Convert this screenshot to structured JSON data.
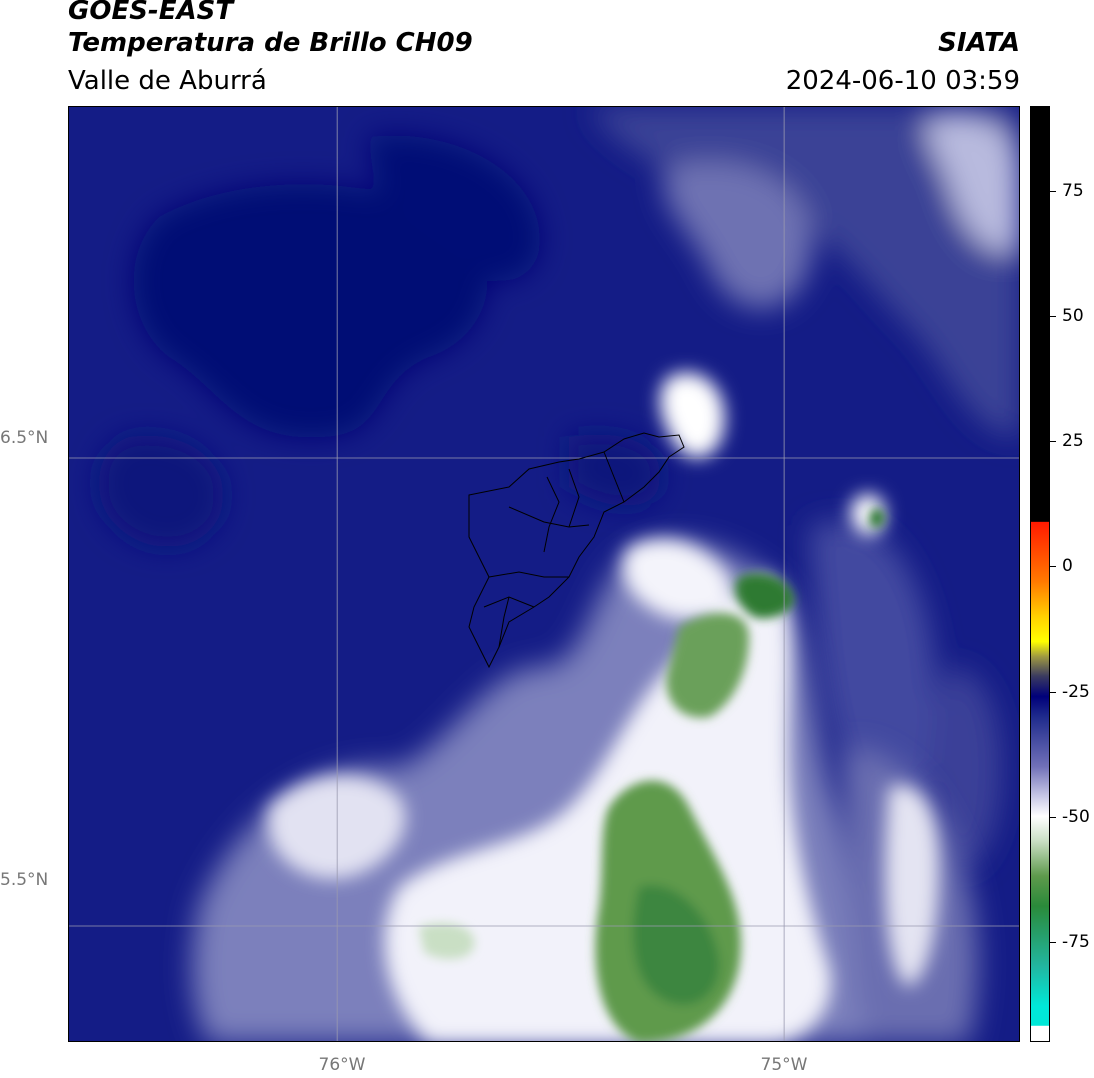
{
  "header": {
    "title": "GOES-EAST",
    "subtitle": "Temperatura de Brillo CH09",
    "region": "Valle de Aburrá",
    "brand": "SIATA",
    "timestamp": "2024-06-10 03:59"
  },
  "map": {
    "lat_labels": [
      "6.5°N",
      "5.5°N"
    ],
    "lon_labels": [
      "76°W",
      "75°W"
    ],
    "lat_values": [
      6.5,
      5.5
    ],
    "lon_values": [
      -76.0,
      -75.0
    ],
    "lat_range": [
      5.25,
      7.25
    ],
    "lon_range": [
      -76.6,
      -74.47
    ],
    "grid": true,
    "background_color": "#141c86",
    "features": [
      {
        "name": "deep-cold-blob-nw",
        "lon": -75.95,
        "lat": 6.95,
        "tb": -25
      },
      {
        "name": "cool-top-ne",
        "lon": -74.55,
        "lat": 7.05,
        "tb": -48
      },
      {
        "name": "cool-top-n",
        "lon": -75.15,
        "lat": 6.95,
        "tb": -40
      },
      {
        "name": "white-cell-north",
        "lon": -75.2,
        "lat": 6.53,
        "tb": -50
      },
      {
        "name": "green-cell-east",
        "lon": -74.8,
        "lat": 6.33,
        "tb": -65
      },
      {
        "name": "green-core-center",
        "lon": -75.08,
        "lat": 6.2,
        "tb": -70
      },
      {
        "name": "green-core-upper",
        "lon": -75.18,
        "lat": 6.05,
        "tb": -66
      },
      {
        "name": "green-core-south",
        "lon": -75.22,
        "lat": 5.45,
        "tb": -75
      },
      {
        "name": "white-band-south",
        "lon": -75.7,
        "lat": 5.5,
        "tb": -52
      },
      {
        "name": "white-band-east",
        "lon": -74.63,
        "lat": 5.55,
        "tb": -45
      }
    ]
  },
  "colorbar": {
    "tick_labels": [
      "75",
      "50",
      "25",
      "0",
      "-25",
      "-50",
      "-75"
    ],
    "tick_values": [
      75,
      50,
      25,
      0,
      -25,
      -50,
      -75
    ],
    "range": [
      -95,
      92
    ],
    "stops": [
      {
        "value": 92,
        "color": "#000000"
      },
      {
        "value": 9,
        "color": "#000000"
      },
      {
        "value": 8.9,
        "color": "#ff1a00"
      },
      {
        "value": -3,
        "color": "#ff7a00"
      },
      {
        "value": -10,
        "color": "#ffd000"
      },
      {
        "value": -15,
        "color": "#ffff00"
      },
      {
        "value": -18,
        "color": "#a09a40"
      },
      {
        "value": -22,
        "color": "#3a3a60"
      },
      {
        "value": -26,
        "color": "#00007a"
      },
      {
        "value": -30,
        "color": "#1e2a8c"
      },
      {
        "value": -40,
        "color": "#7070b8"
      },
      {
        "value": -46,
        "color": "#c8c8e6"
      },
      {
        "value": -50,
        "color": "#ffffff"
      },
      {
        "value": -55,
        "color": "#c9dfc4"
      },
      {
        "value": -62,
        "color": "#5e9a4c"
      },
      {
        "value": -68,
        "color": "#2a8a3a"
      },
      {
        "value": -80,
        "color": "#22b6a0"
      },
      {
        "value": -88,
        "color": "#00e8d8"
      },
      {
        "value": -91.9,
        "color": "#00e8d8"
      },
      {
        "value": -92,
        "color": "#ffffff"
      },
      {
        "value": -95,
        "color": "#ffffff"
      }
    ]
  }
}
